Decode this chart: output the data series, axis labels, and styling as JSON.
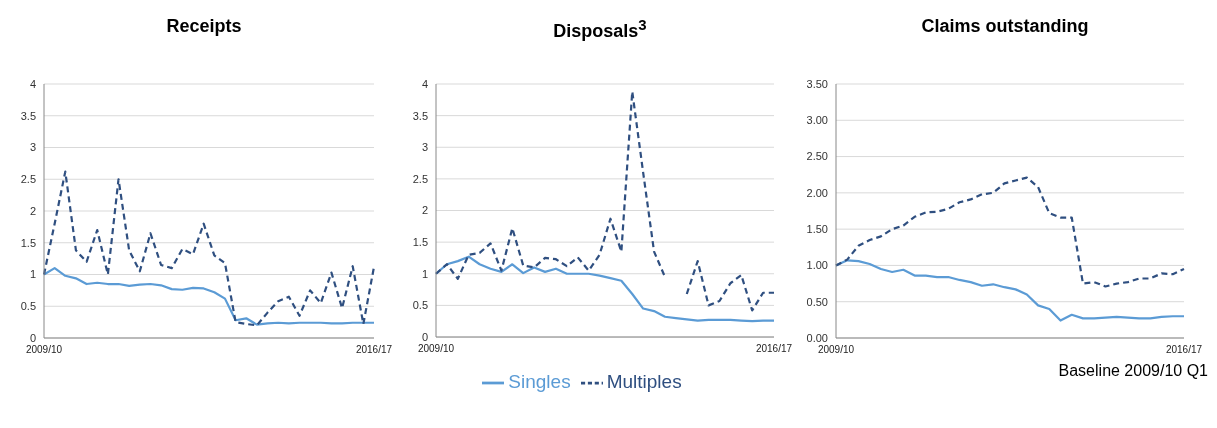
{
  "chart_data": [
    {
      "type": "line",
      "title": "Receipts",
      "categories": [
        "2009/10",
        null,
        null,
        null,
        null,
        null,
        null,
        null,
        null,
        null,
        null,
        null,
        null,
        null,
        null,
        null,
        null,
        null,
        null,
        null,
        null,
        null,
        null,
        null,
        null,
        null,
        null,
        null,
        null,
        null,
        null,
        "2016/17"
      ],
      "ylim": [
        0,
        4
      ],
      "yticks": [
        0,
        0.5,
        1,
        1.5,
        2,
        2.5,
        3,
        3.5,
        4
      ],
      "grid": "y",
      "legend": false,
      "series": [
        {
          "color": "#5b9bd5",
          "line_style": "solid",
          "values": [
            1.0,
            1.1,
            0.98,
            0.94,
            0.85,
            0.87,
            0.85,
            0.85,
            0.82,
            0.84,
            0.85,
            0.83,
            0.77,
            0.76,
            0.79,
            0.78,
            0.72,
            0.62,
            0.28,
            0.31,
            0.21,
            0.23,
            0.24,
            0.23,
            0.24,
            0.24,
            0.24,
            0.23,
            0.23,
            0.24,
            0.24,
            0.24
          ]
        },
        {
          "color": "#2f4f80",
          "line_style": "dashed",
          "values": [
            1.0,
            1.8,
            2.62,
            1.38,
            1.2,
            1.7,
            1.0,
            2.5,
            1.38,
            1.05,
            1.65,
            1.15,
            1.1,
            1.4,
            1.32,
            1.8,
            1.3,
            1.18,
            0.25,
            0.22,
            0.2,
            0.4,
            0.58,
            0.65,
            0.35,
            0.75,
            0.55,
            1.03,
            0.47,
            1.13,
            0.22,
            1.12
          ]
        }
      ]
    },
    {
      "type": "line",
      "title": "Disposals$^{3}$",
      "categories": [
        "2009/10",
        null,
        null,
        null,
        null,
        null,
        null,
        null,
        null,
        null,
        null,
        null,
        null,
        null,
        null,
        null,
        null,
        null,
        null,
        null,
        null,
        null,
        null,
        null,
        null,
        null,
        null,
        null,
        null,
        null,
        null,
        "2016/17"
      ],
      "ylim": [
        0,
        4
      ],
      "yticks": [
        0,
        0.5,
        1,
        1.5,
        2,
        2.5,
        3,
        3.5,
        4
      ],
      "grid": "y",
      "legend": "bottom",
      "series": [
        {
          "name": "Singles",
          "color": "#5b9bd5",
          "line_style": "solid",
          "values": [
            1.0,
            1.15,
            1.2,
            1.27,
            1.15,
            1.08,
            1.03,
            1.15,
            1.01,
            1.1,
            1.03,
            1.08,
            1.0,
            1.0,
            1.0,
            0.97,
            0.93,
            0.89,
            0.68,
            0.45,
            0.41,
            0.32,
            0.3,
            0.28,
            0.26,
            0.27,
            0.27,
            0.27,
            0.26,
            0.25,
            0.26,
            0.26
          ]
        },
        {
          "name": "Multiples",
          "color": "#2f4f80",
          "line_style": "dashed",
          "values": [
            1.0,
            1.15,
            0.92,
            1.3,
            1.33,
            1.48,
            1.05,
            1.72,
            1.13,
            1.1,
            1.25,
            1.23,
            1.12,
            1.26,
            1.05,
            1.3,
            1.87,
            1.35,
            3.88,
            2.6,
            1.35,
            0.95,
            null,
            0.68,
            1.2,
            0.5,
            0.57,
            0.85,
            0.98,
            0.42,
            0.7,
            0.7
          ]
        }
      ]
    },
    {
      "type": "line",
      "title": "Claims outstanding",
      "categories": [
        "2009/10",
        null,
        null,
        null,
        null,
        null,
        null,
        null,
        null,
        null,
        null,
        null,
        null,
        null,
        null,
        null,
        null,
        null,
        null,
        null,
        null,
        null,
        null,
        null,
        null,
        null,
        null,
        null,
        null,
        null,
        null,
        "2016/17"
      ],
      "ylim": [
        0,
        3.5
      ],
      "yticks": [
        {
          "value": 0,
          "label": "0.00"
        },
        {
          "value": 0.5,
          "label": "0.50"
        },
        {
          "value": 1,
          "label": "1.00"
        },
        {
          "value": 1.5,
          "label": "1.50"
        },
        {
          "value": 2,
          "label": "2.00"
        },
        {
          "value": 2.5,
          "label": "2.50"
        },
        {
          "value": 3,
          "label": "3.00"
        },
        {
          "value": 3.5,
          "label": "3.50"
        }
      ],
      "grid": "y",
      "legend": false,
      "annotations": [
        "Baseline 2009/10 Q1"
      ],
      "series": [
        {
          "color": "#5b9bd5",
          "line_style": "solid",
          "values": [
            1.0,
            1.07,
            1.06,
            1.02,
            0.95,
            0.91,
            0.94,
            0.86,
            0.86,
            0.84,
            0.84,
            0.8,
            0.77,
            0.72,
            0.74,
            0.7,
            0.67,
            0.6,
            0.45,
            0.4,
            0.24,
            0.32,
            0.27,
            0.27,
            0.28,
            0.29,
            0.28,
            0.27,
            0.27,
            0.29,
            0.3,
            0.3
          ]
        },
        {
          "color": "#2f4f80",
          "line_style": "dashed",
          "values": [
            1.0,
            1.08,
            1.27,
            1.35,
            1.4,
            1.5,
            1.55,
            1.67,
            1.73,
            1.74,
            1.78,
            1.87,
            1.91,
            1.98,
            2.0,
            2.13,
            2.17,
            2.21,
            2.08,
            1.72,
            1.66,
            1.66,
            0.75,
            0.77,
            0.71,
            0.75,
            0.77,
            0.82,
            0.82,
            0.89,
            0.88,
            0.95
          ]
        }
      ]
    }
  ]
}
